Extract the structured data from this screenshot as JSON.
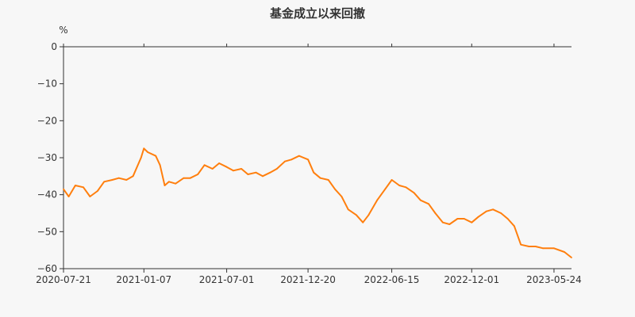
{
  "chart_data": {
    "type": "line",
    "title": "基金成立以来回撤",
    "ylabel": "%",
    "xlabel": "",
    "ylim": [
      -60,
      0
    ],
    "yticks": [
      0,
      -10,
      -20,
      -30,
      -40,
      -50,
      -60
    ],
    "xticks": [
      "2020-07-21",
      "2021-01-07",
      "2021-07-01",
      "2021-12-20",
      "2022-06-15",
      "2022-12-01",
      "2023-05-24"
    ],
    "grid": false,
    "line_color": "#ff7f0e",
    "x": [
      "2020-07-21",
      "2020-08-01",
      "2020-08-15",
      "2020-09-01",
      "2020-09-15",
      "2020-10-01",
      "2020-10-15",
      "2020-11-01",
      "2020-11-15",
      "2020-12-01",
      "2020-12-15",
      "2021-01-01",
      "2021-01-07",
      "2021-01-15",
      "2021-02-01",
      "2021-02-10",
      "2021-02-20",
      "2021-03-01",
      "2021-03-15",
      "2021-04-01",
      "2021-04-15",
      "2021-05-01",
      "2021-05-15",
      "2021-06-01",
      "2021-06-15",
      "2021-07-01",
      "2021-07-15",
      "2021-08-01",
      "2021-08-15",
      "2021-09-01",
      "2021-09-15",
      "2021-10-01",
      "2021-10-15",
      "2021-11-01",
      "2021-11-15",
      "2021-12-01",
      "2021-12-20",
      "2022-01-01",
      "2022-01-15",
      "2022-02-01",
      "2022-02-15",
      "2022-03-01",
      "2022-03-15",
      "2022-04-01",
      "2022-04-15",
      "2022-04-27",
      "2022-05-15",
      "2022-06-01",
      "2022-06-15",
      "2022-07-01",
      "2022-07-15",
      "2022-08-01",
      "2022-08-15",
      "2022-09-01",
      "2022-09-15",
      "2022-10-01",
      "2022-10-15",
      "2022-11-01",
      "2022-11-15",
      "2022-12-01",
      "2022-12-15",
      "2023-01-01",
      "2023-01-15",
      "2023-02-01",
      "2023-02-15",
      "2023-03-01",
      "2023-03-15",
      "2023-04-01",
      "2023-04-15",
      "2023-05-01",
      "2023-05-24",
      "2023-06-15",
      "2023-06-30"
    ],
    "values": [
      -38.5,
      -40.5,
      -37.5,
      -38.0,
      -40.5,
      -39.0,
      -36.5,
      -36.0,
      -35.5,
      -36.0,
      -35.0,
      -30.0,
      -27.5,
      -28.5,
      -29.5,
      -32.0,
      -37.5,
      -36.5,
      -37.0,
      -35.5,
      -35.5,
      -34.5,
      -32.0,
      -33.0,
      -31.5,
      -32.5,
      -33.5,
      -33.0,
      -34.5,
      -34.0,
      -35.0,
      -34.0,
      -33.0,
      -31.0,
      -30.5,
      -29.5,
      -30.5,
      -34.0,
      -35.5,
      -36.0,
      -38.5,
      -40.5,
      -44.0,
      -45.5,
      -47.5,
      -45.5,
      -41.5,
      -38.5,
      -36.0,
      -37.5,
      -38.0,
      -39.5,
      -41.5,
      -42.5,
      -45.0,
      -47.5,
      -48.0,
      -46.5,
      -46.5,
      -47.5,
      -46.0,
      -44.5,
      -44.0,
      -45.0,
      -46.5,
      -48.5,
      -53.5,
      -54.0,
      -54.0,
      -54.5,
      -54.5,
      -55.5,
      -57.0
    ]
  }
}
